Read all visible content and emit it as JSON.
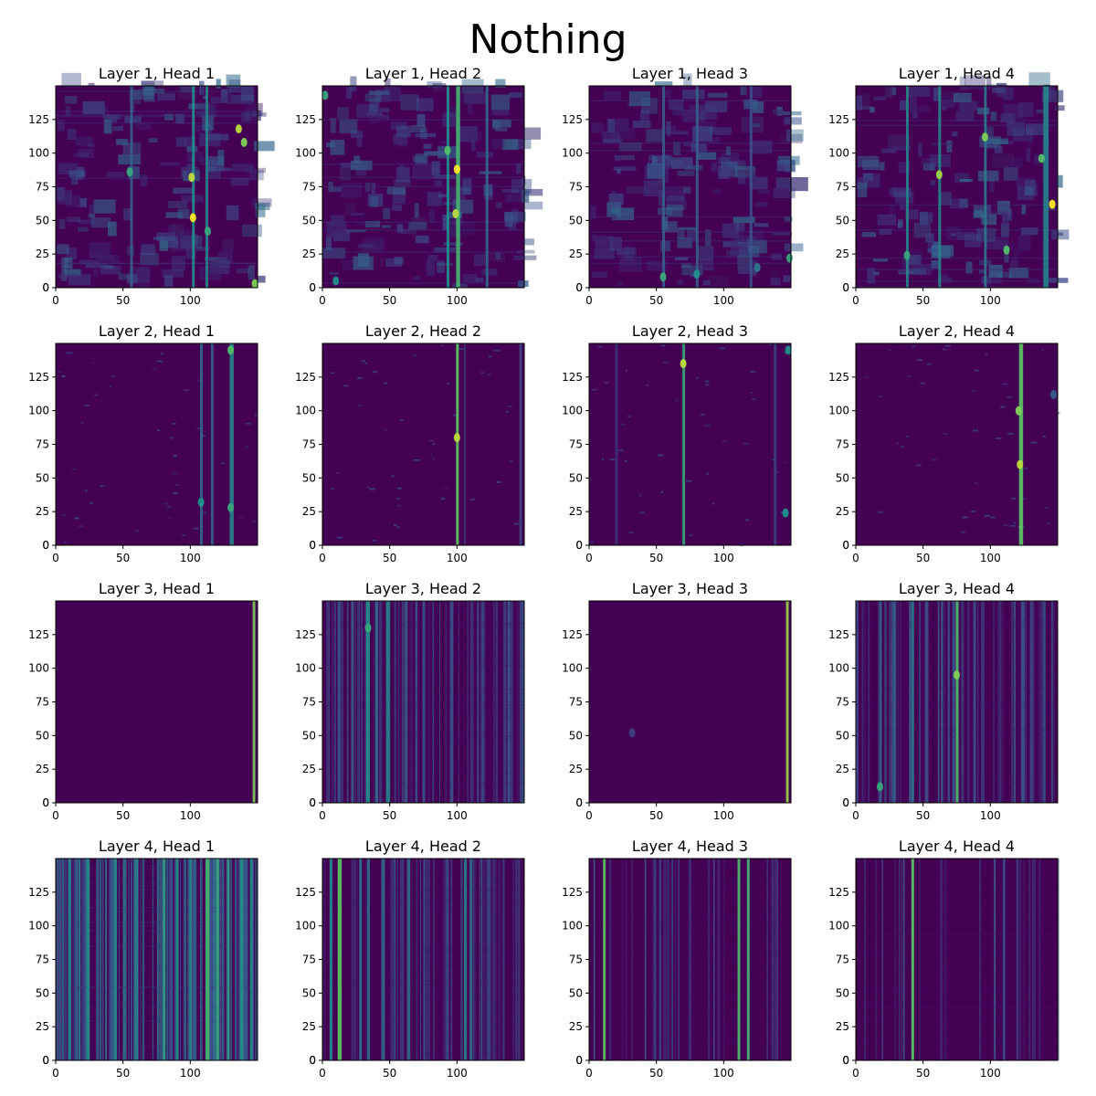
{
  "figure": {
    "title": "Nothing"
  },
  "colors": {
    "low": "#440154",
    "mid": "#21918c",
    "high": "#fde725",
    "axis": "#000000"
  },
  "chart_data": [
    {
      "type": "heatmap",
      "title": "Layer 1, Head 1",
      "xlim": [
        0,
        150
      ],
      "ylim": [
        0,
        150
      ],
      "xticks": [
        0,
        50,
        100
      ],
      "yticks": [
        0,
        25,
        50,
        75,
        100,
        125
      ],
      "colormap": "viridis",
      "pattern": "diffuse",
      "stripes": [
        {
          "x": 102,
          "w": 2,
          "v": 0.5
        },
        {
          "x": 112,
          "w": 2,
          "v": 0.45
        },
        {
          "x": 56,
          "w": 2,
          "v": 0.3
        }
      ],
      "spots": [
        {
          "x": 102,
          "y": 52,
          "v": 1.0
        },
        {
          "x": 101,
          "y": 82,
          "v": 0.9
        },
        {
          "x": 136,
          "y": 118,
          "v": 0.9
        },
        {
          "x": 140,
          "y": 108,
          "v": 0.8
        },
        {
          "x": 55,
          "y": 86,
          "v": 0.6
        },
        {
          "x": 148,
          "y": 3,
          "v": 0.8
        },
        {
          "x": 113,
          "y": 42,
          "v": 0.6
        }
      ]
    },
    {
      "type": "heatmap",
      "title": "Layer 1, Head 2",
      "xlim": [
        0,
        150
      ],
      "ylim": [
        0,
        150
      ],
      "xticks": [
        0,
        50,
        100
      ],
      "yticks": [
        0,
        25,
        50,
        75,
        100,
        125
      ],
      "colormap": "viridis",
      "pattern": "diffuse",
      "stripes": [
        {
          "x": 100,
          "w": 3,
          "v": 0.65
        },
        {
          "x": 93,
          "w": 2,
          "v": 0.5
        },
        {
          "x": 122,
          "w": 2,
          "v": 0.35
        }
      ],
      "spots": [
        {
          "x": 100,
          "y": 88,
          "v": 1.0
        },
        {
          "x": 99,
          "y": 55,
          "v": 0.9
        },
        {
          "x": 93,
          "y": 102,
          "v": 0.7
        },
        {
          "x": 2,
          "y": 143,
          "v": 0.6
        },
        {
          "x": 10,
          "y": 5,
          "v": 0.5
        }
      ]
    },
    {
      "type": "heatmap",
      "title": "Layer 1, Head 3",
      "xlim": [
        0,
        150
      ],
      "ylim": [
        0,
        150
      ],
      "xticks": [
        0,
        50,
        100
      ],
      "yticks": [
        0,
        25,
        50,
        75,
        100,
        125
      ],
      "colormap": "viridis",
      "pattern": "diffuse",
      "stripes": [
        {
          "x": 55,
          "w": 2,
          "v": 0.3
        },
        {
          "x": 80,
          "w": 2,
          "v": 0.3
        },
        {
          "x": 120,
          "w": 2,
          "v": 0.25
        }
      ],
      "spots": [
        {
          "x": 55,
          "y": 8,
          "v": 0.6
        },
        {
          "x": 80,
          "y": 10,
          "v": 0.5
        },
        {
          "x": 149,
          "y": 22,
          "v": 0.6
        },
        {
          "x": 125,
          "y": 15,
          "v": 0.4
        }
      ]
    },
    {
      "type": "heatmap",
      "title": "Layer 1, Head 4",
      "xlim": [
        0,
        150
      ],
      "ylim": [
        0,
        150
      ],
      "xticks": [
        0,
        50,
        100
      ],
      "yticks": [
        0,
        25,
        50,
        75,
        100,
        125
      ],
      "colormap": "viridis",
      "pattern": "diffuse",
      "stripes": [
        {
          "x": 38,
          "w": 2,
          "v": 0.45
        },
        {
          "x": 62,
          "w": 2,
          "v": 0.45
        },
        {
          "x": 96,
          "w": 2,
          "v": 0.4
        },
        {
          "x": 140,
          "w": 4,
          "v": 0.45
        }
      ],
      "spots": [
        {
          "x": 146,
          "y": 62,
          "v": 1.0
        },
        {
          "x": 62,
          "y": 84,
          "v": 0.85
        },
        {
          "x": 96,
          "y": 112,
          "v": 0.8
        },
        {
          "x": 38,
          "y": 24,
          "v": 0.6
        },
        {
          "x": 112,
          "y": 28,
          "v": 0.7
        },
        {
          "x": 138,
          "y": 96,
          "v": 0.7
        }
      ]
    },
    {
      "type": "heatmap",
      "title": "Layer 2, Head 1",
      "xlim": [
        0,
        150
      ],
      "ylim": [
        0,
        150
      ],
      "xticks": [
        0,
        50,
        100
      ],
      "yticks": [
        0,
        25,
        50,
        75,
        100,
        125
      ],
      "colormap": "viridis",
      "pattern": "sparse",
      "stripes": [
        {
          "x": 108,
          "w": 2,
          "v": 0.35
        },
        {
          "x": 116,
          "w": 2,
          "v": 0.3
        },
        {
          "x": 130,
          "w": 3,
          "v": 0.45
        }
      ],
      "spots": [
        {
          "x": 130,
          "y": 145,
          "v": 0.7
        },
        {
          "x": 130,
          "y": 28,
          "v": 0.6
        },
        {
          "x": 108,
          "y": 32,
          "v": 0.5
        }
      ]
    },
    {
      "type": "heatmap",
      "title": "Layer 2, Head 2",
      "xlim": [
        0,
        150
      ],
      "ylim": [
        0,
        150
      ],
      "xticks": [
        0,
        50,
        100
      ],
      "yticks": [
        0,
        25,
        50,
        75,
        100,
        125
      ],
      "colormap": "viridis",
      "pattern": "sparse",
      "stripes": [
        {
          "x": 100,
          "w": 2,
          "v": 0.75
        },
        {
          "x": 106,
          "w": 1,
          "v": 0.2
        },
        {
          "x": 147,
          "w": 2,
          "v": 0.2
        }
      ],
      "spots": [
        {
          "x": 100,
          "y": 80,
          "v": 0.9
        }
      ]
    },
    {
      "type": "heatmap",
      "title": "Layer 2, Head 3",
      "xlim": [
        0,
        150
      ],
      "ylim": [
        0,
        150
      ],
      "xticks": [
        0,
        50,
        100
      ],
      "yticks": [
        0,
        25,
        50,
        75,
        100,
        125
      ],
      "colormap": "viridis",
      "pattern": "sparse",
      "stripes": [
        {
          "x": 70,
          "w": 2,
          "v": 0.6
        },
        {
          "x": 20,
          "w": 2,
          "v": 0.15
        },
        {
          "x": 138,
          "w": 2,
          "v": 0.2
        }
      ],
      "spots": [
        {
          "x": 70,
          "y": 135,
          "v": 0.9
        },
        {
          "x": 146,
          "y": 24,
          "v": 0.5
        },
        {
          "x": 148,
          "y": 145,
          "v": 0.5
        }
      ]
    },
    {
      "type": "heatmap",
      "title": "Layer 2, Head 4",
      "xlim": [
        0,
        150
      ],
      "ylim": [
        0,
        150
      ],
      "xticks": [
        0,
        50,
        100
      ],
      "yticks": [
        0,
        25,
        50,
        75,
        100,
        125
      ],
      "colormap": "viridis",
      "pattern": "sparse",
      "stripes": [
        {
          "x": 122,
          "w": 3,
          "v": 0.75
        }
      ],
      "spots": [
        {
          "x": 122,
          "y": 60,
          "v": 0.9
        },
        {
          "x": 121,
          "y": 100,
          "v": 0.8
        },
        {
          "x": 147,
          "y": 112,
          "v": 0.3
        }
      ]
    },
    {
      "type": "heatmap",
      "title": "Layer 3, Head 1",
      "xlim": [
        0,
        150
      ],
      "ylim": [
        0,
        150
      ],
      "xticks": [
        0,
        50,
        100
      ],
      "yticks": [
        0,
        25,
        50,
        75,
        100,
        125
      ],
      "colormap": "viridis",
      "pattern": "empty",
      "stripes": [
        {
          "x": 147,
          "w": 2,
          "v": 0.8
        }
      ],
      "spots": []
    },
    {
      "type": "heatmap",
      "title": "Layer 3, Head 2",
      "xlim": [
        0,
        150
      ],
      "ylim": [
        0,
        150
      ],
      "xticks": [
        0,
        50,
        100
      ],
      "yticks": [
        0,
        25,
        50,
        75,
        100,
        125
      ],
      "colormap": "viridis",
      "pattern": "stripes",
      "stripes": [
        {
          "x": 33,
          "w": 3,
          "v": 0.5
        },
        {
          "x": 48,
          "w": 3,
          "v": 0.45
        },
        {
          "x": 40,
          "w": 2,
          "v": 0.35
        },
        {
          "x": 22,
          "w": 2,
          "v": 0.3
        },
        {
          "x": 62,
          "w": 2,
          "v": 0.3
        },
        {
          "x": 75,
          "w": 2,
          "v": 0.25
        },
        {
          "x": 96,
          "w": 2,
          "v": 0.25
        },
        {
          "x": 12,
          "w": 2,
          "v": 0.25
        }
      ],
      "spots": [
        {
          "x": 34,
          "y": 130,
          "v": 0.6
        }
      ]
    },
    {
      "type": "heatmap",
      "title": "Layer 3, Head 3",
      "xlim": [
        0,
        150
      ],
      "ylim": [
        0,
        150
      ],
      "xticks": [
        0,
        50,
        100
      ],
      "yticks": [
        0,
        25,
        50,
        75,
        100,
        125
      ],
      "colormap": "viridis",
      "pattern": "empty",
      "stripes": [
        {
          "x": 147,
          "w": 2,
          "v": 0.85
        }
      ],
      "spots": [
        {
          "x": 32,
          "y": 52,
          "v": 0.2
        }
      ]
    },
    {
      "type": "heatmap",
      "title": "Layer 3, Head 4",
      "xlim": [
        0,
        150
      ],
      "ylim": [
        0,
        150
      ],
      "xticks": [
        0,
        50,
        100
      ],
      "yticks": [
        0,
        25,
        50,
        75,
        100,
        125
      ],
      "colormap": "viridis",
      "pattern": "stripes",
      "stripes": [
        {
          "x": 75,
          "w": 2,
          "v": 0.7
        },
        {
          "x": 42,
          "w": 2,
          "v": 0.4
        },
        {
          "x": 28,
          "w": 2,
          "v": 0.3
        },
        {
          "x": 18,
          "w": 2,
          "v": 0.3
        },
        {
          "x": 52,
          "w": 2,
          "v": 0.25
        },
        {
          "x": 88,
          "w": 2,
          "v": 0.25
        },
        {
          "x": 130,
          "w": 2,
          "v": 0.2
        }
      ],
      "spots": [
        {
          "x": 18,
          "y": 12,
          "v": 0.6
        },
        {
          "x": 75,
          "y": 95,
          "v": 0.8
        }
      ]
    },
    {
      "type": "heatmap",
      "title": "Layer 4, Head 1",
      "xlim": [
        0,
        150
      ],
      "ylim": [
        0,
        150
      ],
      "xticks": [
        0,
        50,
        100
      ],
      "yticks": [
        0,
        25,
        50,
        75,
        100,
        125
      ],
      "colormap": "viridis",
      "pattern": "dense",
      "stripes": [
        {
          "x": 24,
          "w": 2,
          "v": 0.5
        },
        {
          "x": 44,
          "w": 2,
          "v": 0.5
        },
        {
          "x": 80,
          "w": 2,
          "v": 0.55
        },
        {
          "x": 90,
          "w": 2,
          "v": 0.5
        },
        {
          "x": 112,
          "w": 3,
          "v": 0.65
        },
        {
          "x": 120,
          "w": 2,
          "v": 0.6
        },
        {
          "x": 128,
          "w": 2,
          "v": 0.55
        },
        {
          "x": 138,
          "w": 2,
          "v": 0.5
        },
        {
          "x": 145,
          "w": 2,
          "v": 0.5
        },
        {
          "x": 10,
          "w": 2,
          "v": 0.45
        },
        {
          "x": 60,
          "w": 2,
          "v": 0.45
        },
        {
          "x": 100,
          "w": 2,
          "v": 0.45
        }
      ],
      "spots": []
    },
    {
      "type": "heatmap",
      "title": "Layer 4, Head 2",
      "xlim": [
        0,
        150
      ],
      "ylim": [
        0,
        150
      ],
      "xticks": [
        0,
        50,
        100
      ],
      "yticks": [
        0,
        25,
        50,
        75,
        100,
        125
      ],
      "colormap": "viridis",
      "pattern": "stripes",
      "stripes": [
        {
          "x": 12,
          "w": 3,
          "v": 0.75
        },
        {
          "x": 6,
          "w": 2,
          "v": 0.5
        },
        {
          "x": 28,
          "w": 2,
          "v": 0.4
        },
        {
          "x": 34,
          "w": 2,
          "v": 0.35
        },
        {
          "x": 45,
          "w": 2,
          "v": 0.35
        },
        {
          "x": 64,
          "w": 2,
          "v": 0.35
        },
        {
          "x": 106,
          "w": 2,
          "v": 0.45
        },
        {
          "x": 110,
          "w": 2,
          "v": 0.35
        }
      ],
      "spots": []
    },
    {
      "type": "heatmap",
      "title": "Layer 4, Head 3",
      "xlim": [
        0,
        150
      ],
      "ylim": [
        0,
        150
      ],
      "xticks": [
        0,
        50,
        100
      ],
      "yticks": [
        0,
        25,
        50,
        75,
        100,
        125
      ],
      "colormap": "viridis",
      "pattern": "sparse-stripes",
      "stripes": [
        {
          "x": 11,
          "w": 2,
          "v": 0.75
        },
        {
          "x": 111,
          "w": 2,
          "v": 0.7
        },
        {
          "x": 118,
          "w": 2,
          "v": 0.65
        },
        {
          "x": 4,
          "w": 1,
          "v": 0.3
        },
        {
          "x": 42,
          "w": 1,
          "v": 0.3
        },
        {
          "x": 62,
          "w": 1,
          "v": 0.25
        },
        {
          "x": 93,
          "w": 1,
          "v": 0.25
        },
        {
          "x": 140,
          "w": 1,
          "v": 0.25
        }
      ],
      "spots": []
    },
    {
      "type": "heatmap",
      "title": "Layer 4, Head 4",
      "xlim": [
        0,
        150
      ],
      "ylim": [
        0,
        150
      ],
      "xticks": [
        0,
        50,
        100
      ],
      "yticks": [
        0,
        25,
        50,
        75,
        100,
        125
      ],
      "colormap": "viridis",
      "pattern": "sparse-stripes",
      "stripes": [
        {
          "x": 42,
          "w": 2,
          "v": 0.75
        },
        {
          "x": 36,
          "w": 1,
          "v": 0.3
        },
        {
          "x": 20,
          "w": 1,
          "v": 0.2
        },
        {
          "x": 110,
          "w": 1,
          "v": 0.25
        },
        {
          "x": 120,
          "w": 1,
          "v": 0.2
        }
      ],
      "spots": []
    }
  ]
}
